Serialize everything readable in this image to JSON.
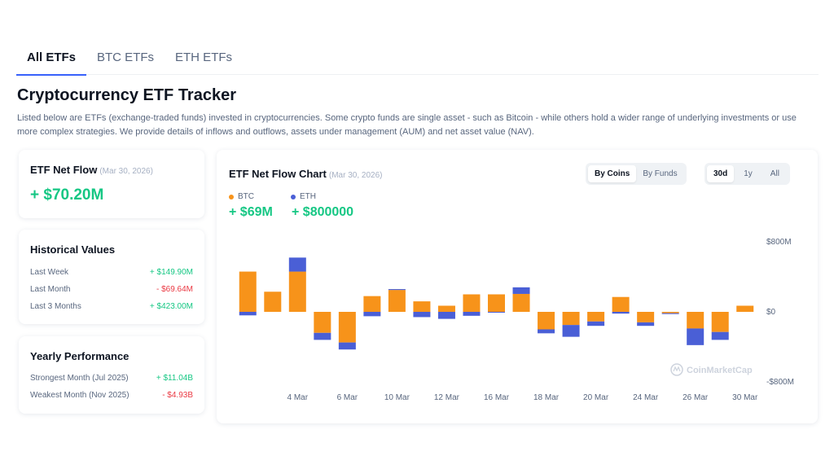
{
  "tabs": [
    {
      "label": "All ETFs",
      "active": true
    },
    {
      "label": "BTC ETFs",
      "active": false
    },
    {
      "label": "ETH ETFs",
      "active": false
    }
  ],
  "page": {
    "title": "Cryptocurrency ETF Tracker",
    "description": "Listed below are ETFs (exchange-traded funds) invested in cryptocurrencies. Some crypto funds are single asset - such as Bitcoin - while others hold a wider range of underlying investments or use more complex strategies. We provide details of inflows and outflows, assets under management (AUM) and net asset value (NAV)."
  },
  "net_flow": {
    "title": "ETF Net Flow",
    "date": "(Mar 30, 2026)",
    "value": "+ $70.20M"
  },
  "historical": {
    "title": "Historical Values",
    "rows": [
      {
        "label": "Last Week",
        "value": "+ $149.90M",
        "sign": "pos"
      },
      {
        "label": "Last Month",
        "value": "- $69.64M",
        "sign": "neg"
      },
      {
        "label": "Last 3 Months",
        "value": "+ $423.00M",
        "sign": "pos"
      }
    ]
  },
  "yearly": {
    "title": "Yearly Performance",
    "rows": [
      {
        "label": "Strongest Month (Jul 2025)",
        "value": "+ $11.04B",
        "sign": "pos"
      },
      {
        "label": "Weakest Month (Nov 2025)",
        "value": "- $4.93B",
        "sign": "neg"
      }
    ]
  },
  "chart_card": {
    "title": "ETF Net Flow Chart",
    "date": "(Mar 30, 2026)",
    "view_toggle": [
      {
        "label": "By Coins",
        "active": true
      },
      {
        "label": "By Funds",
        "active": false
      }
    ],
    "range_toggle": [
      {
        "label": "30d",
        "active": true
      },
      {
        "label": "1y",
        "active": false
      },
      {
        "label": "All",
        "active": false
      }
    ],
    "legend": [
      {
        "name": "BTC",
        "value": "+ $69M",
        "color": "#f7931a"
      },
      {
        "name": "ETH",
        "value": "+ $800000",
        "color": "#4a5fd6"
      }
    ],
    "watermark": "CoinMarketCap"
  },
  "chart_data": {
    "type": "bar",
    "stacked": true,
    "y_tick_labels": [
      "$800M",
      "$0",
      "-$800M"
    ],
    "ylim": [
      -800,
      800
    ],
    "unit": "$M",
    "x_tick_labels": [
      "4 Mar",
      "6 Mar",
      "10 Mar",
      "12 Mar",
      "16 Mar",
      "18 Mar",
      "20 Mar",
      "24 Mar",
      "26 Mar",
      "30 Mar"
    ],
    "categories": [
      "2 Mar",
      "3 Mar",
      "4 Mar",
      "5 Mar",
      "6 Mar",
      "9 Mar",
      "10 Mar",
      "11 Mar",
      "12 Mar",
      "13 Mar",
      "16 Mar",
      "17 Mar",
      "18 Mar",
      "19 Mar",
      "20 Mar",
      "23 Mar",
      "24 Mar",
      "25 Mar",
      "26 Mar",
      "27 Mar",
      "30 Mar"
    ],
    "series": [
      {
        "name": "BTC",
        "color": "#f7931a",
        "values": [
          460,
          230,
          460,
          -240,
          -350,
          180,
          250,
          120,
          70,
          200,
          200,
          205,
          -200,
          -150,
          -110,
          170,
          -120,
          -15,
          -190,
          -230,
          70
        ]
      },
      {
        "name": "ETH",
        "color": "#4a5fd6",
        "values": [
          -40,
          0,
          160,
          -80,
          -80,
          -50,
          10,
          -60,
          -80,
          -45,
          -5,
          75,
          -45,
          -135,
          -50,
          -20,
          -40,
          -10,
          -190,
          -90,
          0
        ]
      }
    ],
    "grid": false
  }
}
